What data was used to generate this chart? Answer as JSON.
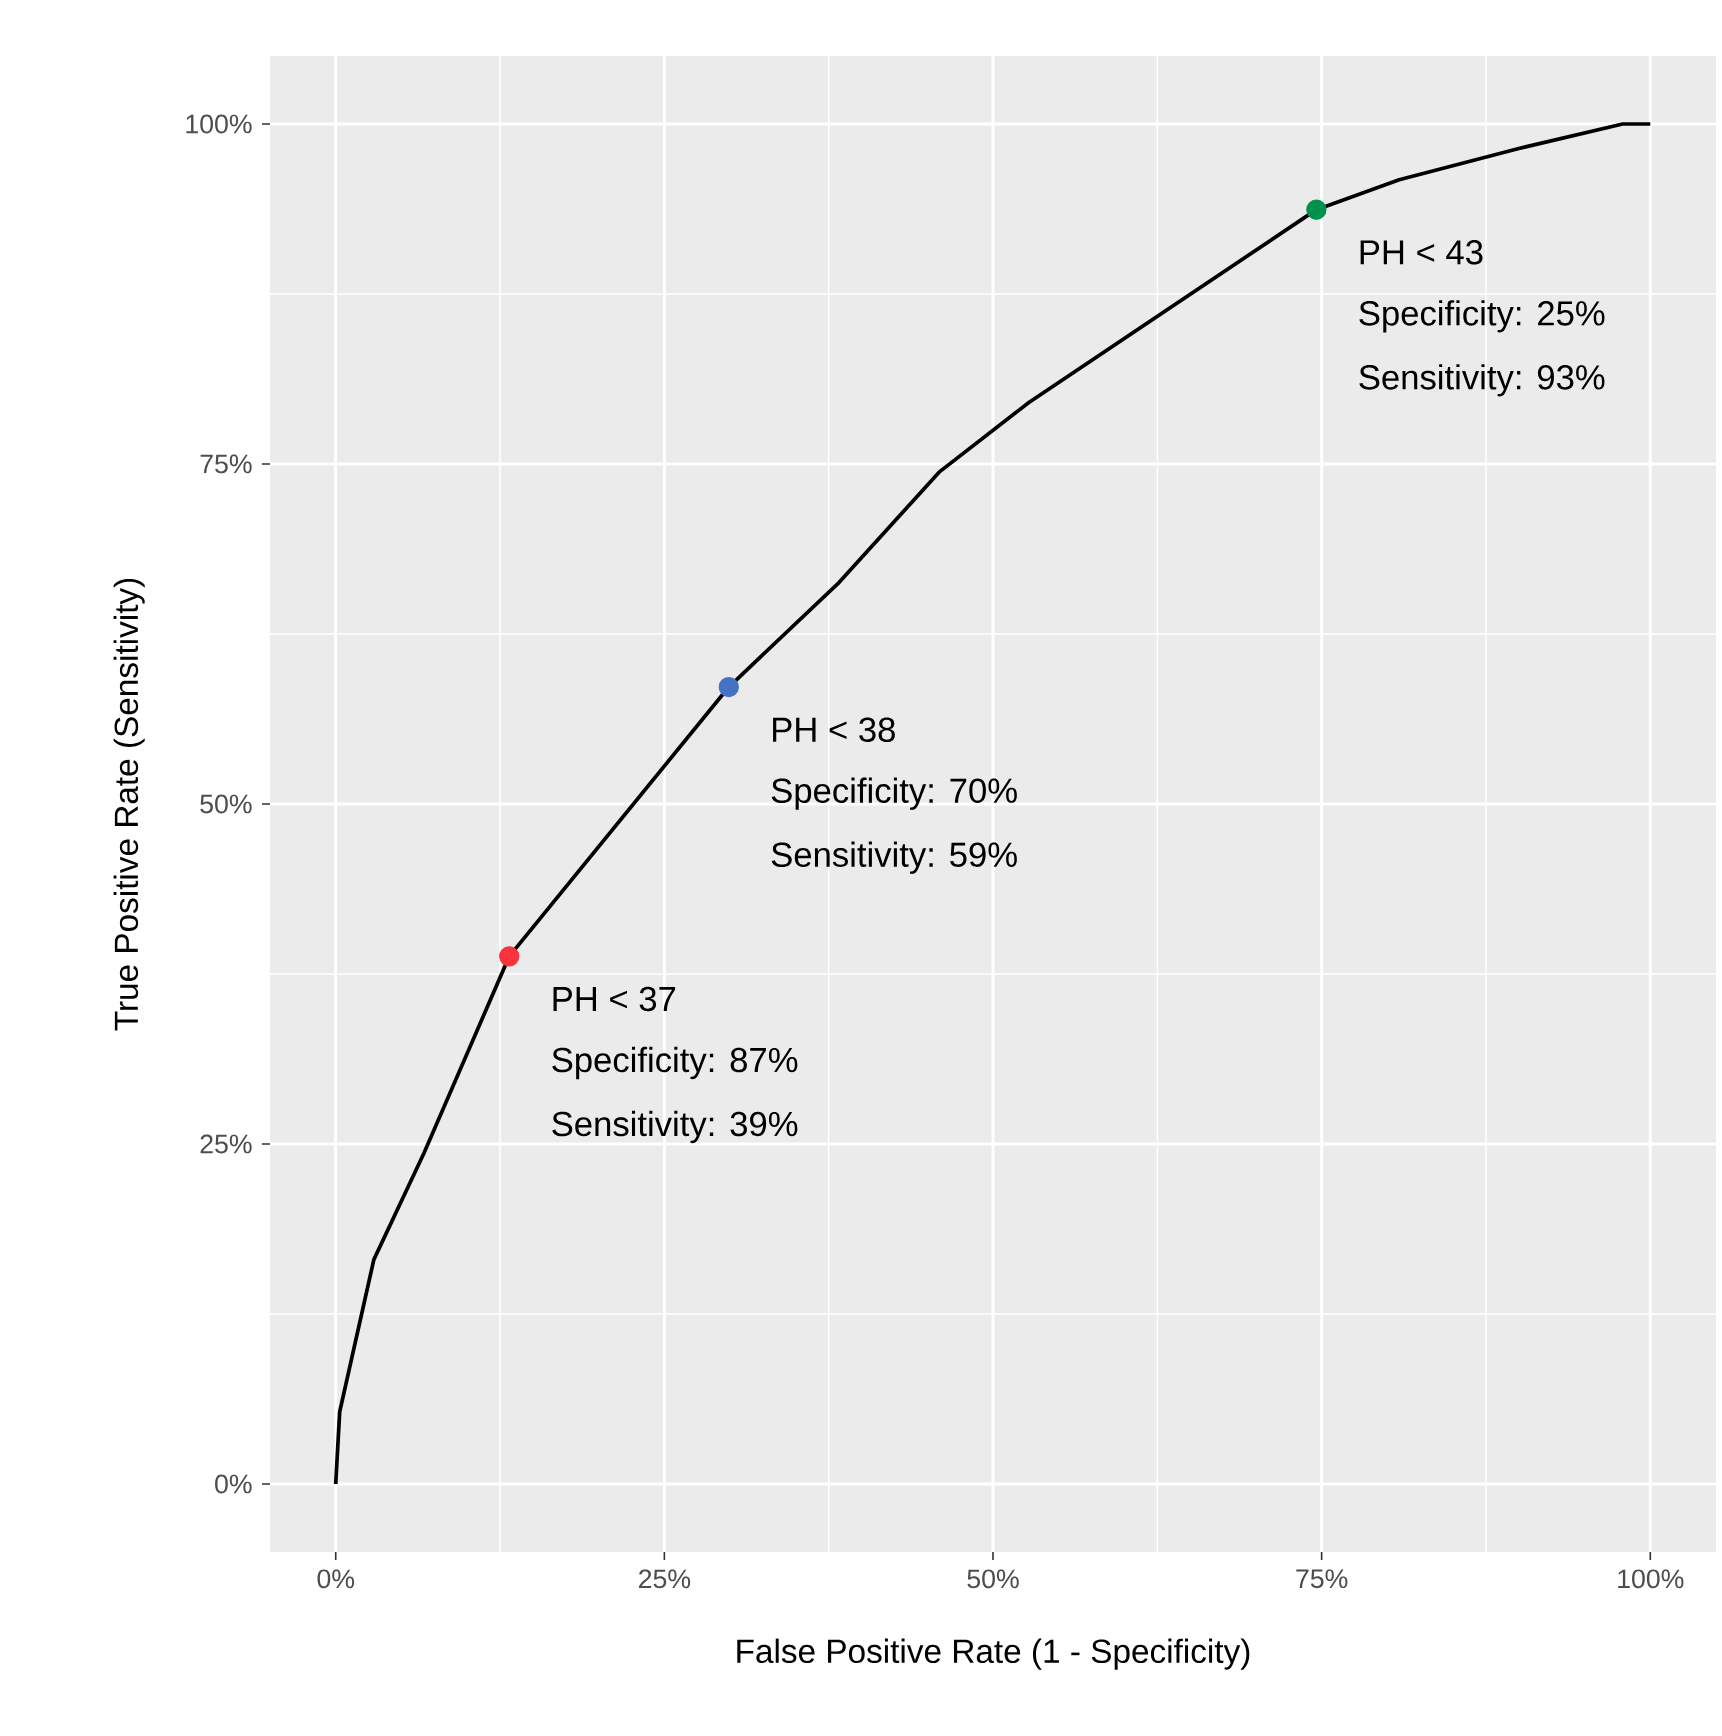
{
  "chart_data": {
    "type": "line",
    "xlabel": "False Positive Rate (1 - Specificity)",
    "ylabel": "True Positive Rate (Sensitivity)",
    "xlim": [
      -5,
      105
    ],
    "ylim": [
      -5,
      105
    ],
    "xticks": [
      {
        "value": 0,
        "label": "0%"
      },
      {
        "value": 25,
        "label": "25%"
      },
      {
        "value": 50,
        "label": "50%"
      },
      {
        "value": 75,
        "label": "75%"
      },
      {
        "value": 100,
        "label": "100%"
      }
    ],
    "yticks": [
      {
        "value": 0,
        "label": "0%"
      },
      {
        "value": 25,
        "label": "25%"
      },
      {
        "value": 50,
        "label": "50%"
      },
      {
        "value": 75,
        "label": "75%"
      },
      {
        "value": 100,
        "label": "100%"
      }
    ],
    "grid": true,
    "series": [
      {
        "color": "#000000",
        "x": [
          0,
          0.3,
          2.9,
          6.7,
          13.2,
          29.9,
          38.3,
          45.9,
          52.7,
          74.6,
          80.9,
          90,
          97.9,
          100
        ],
        "values": [
          0,
          5.3,
          16.5,
          24.3,
          38.8,
          58.6,
          66.3,
          74.4,
          79.5,
          93.7,
          95.9,
          98.2,
          100,
          100
        ]
      },
      {
        "type": "scatter",
        "marker": "circle",
        "colors": [
          "#F8333C",
          "#4472C4",
          "#00914C"
        ],
        "x": [
          13.2,
          29.9,
          74.6
        ],
        "values": [
          38.8,
          58.6,
          93.7
        ]
      }
    ],
    "annotations": [
      {
        "text": "PH < 37",
        "x": 13.2,
        "y": 38.8
      },
      "Specificity: 87%",
      "Sensitivity: 39%",
      {
        "text": "PH < 38",
        "x": 29.9,
        "y": 58.6
      },
      "Specificity: 70%",
      "Sensitivity: 59%",
      {
        "text": "PH < 43",
        "x": 74.6,
        "y": 93.7
      },
      "Specificity: 25%",
      "Sensitivity: 93%"
    ]
  }
}
